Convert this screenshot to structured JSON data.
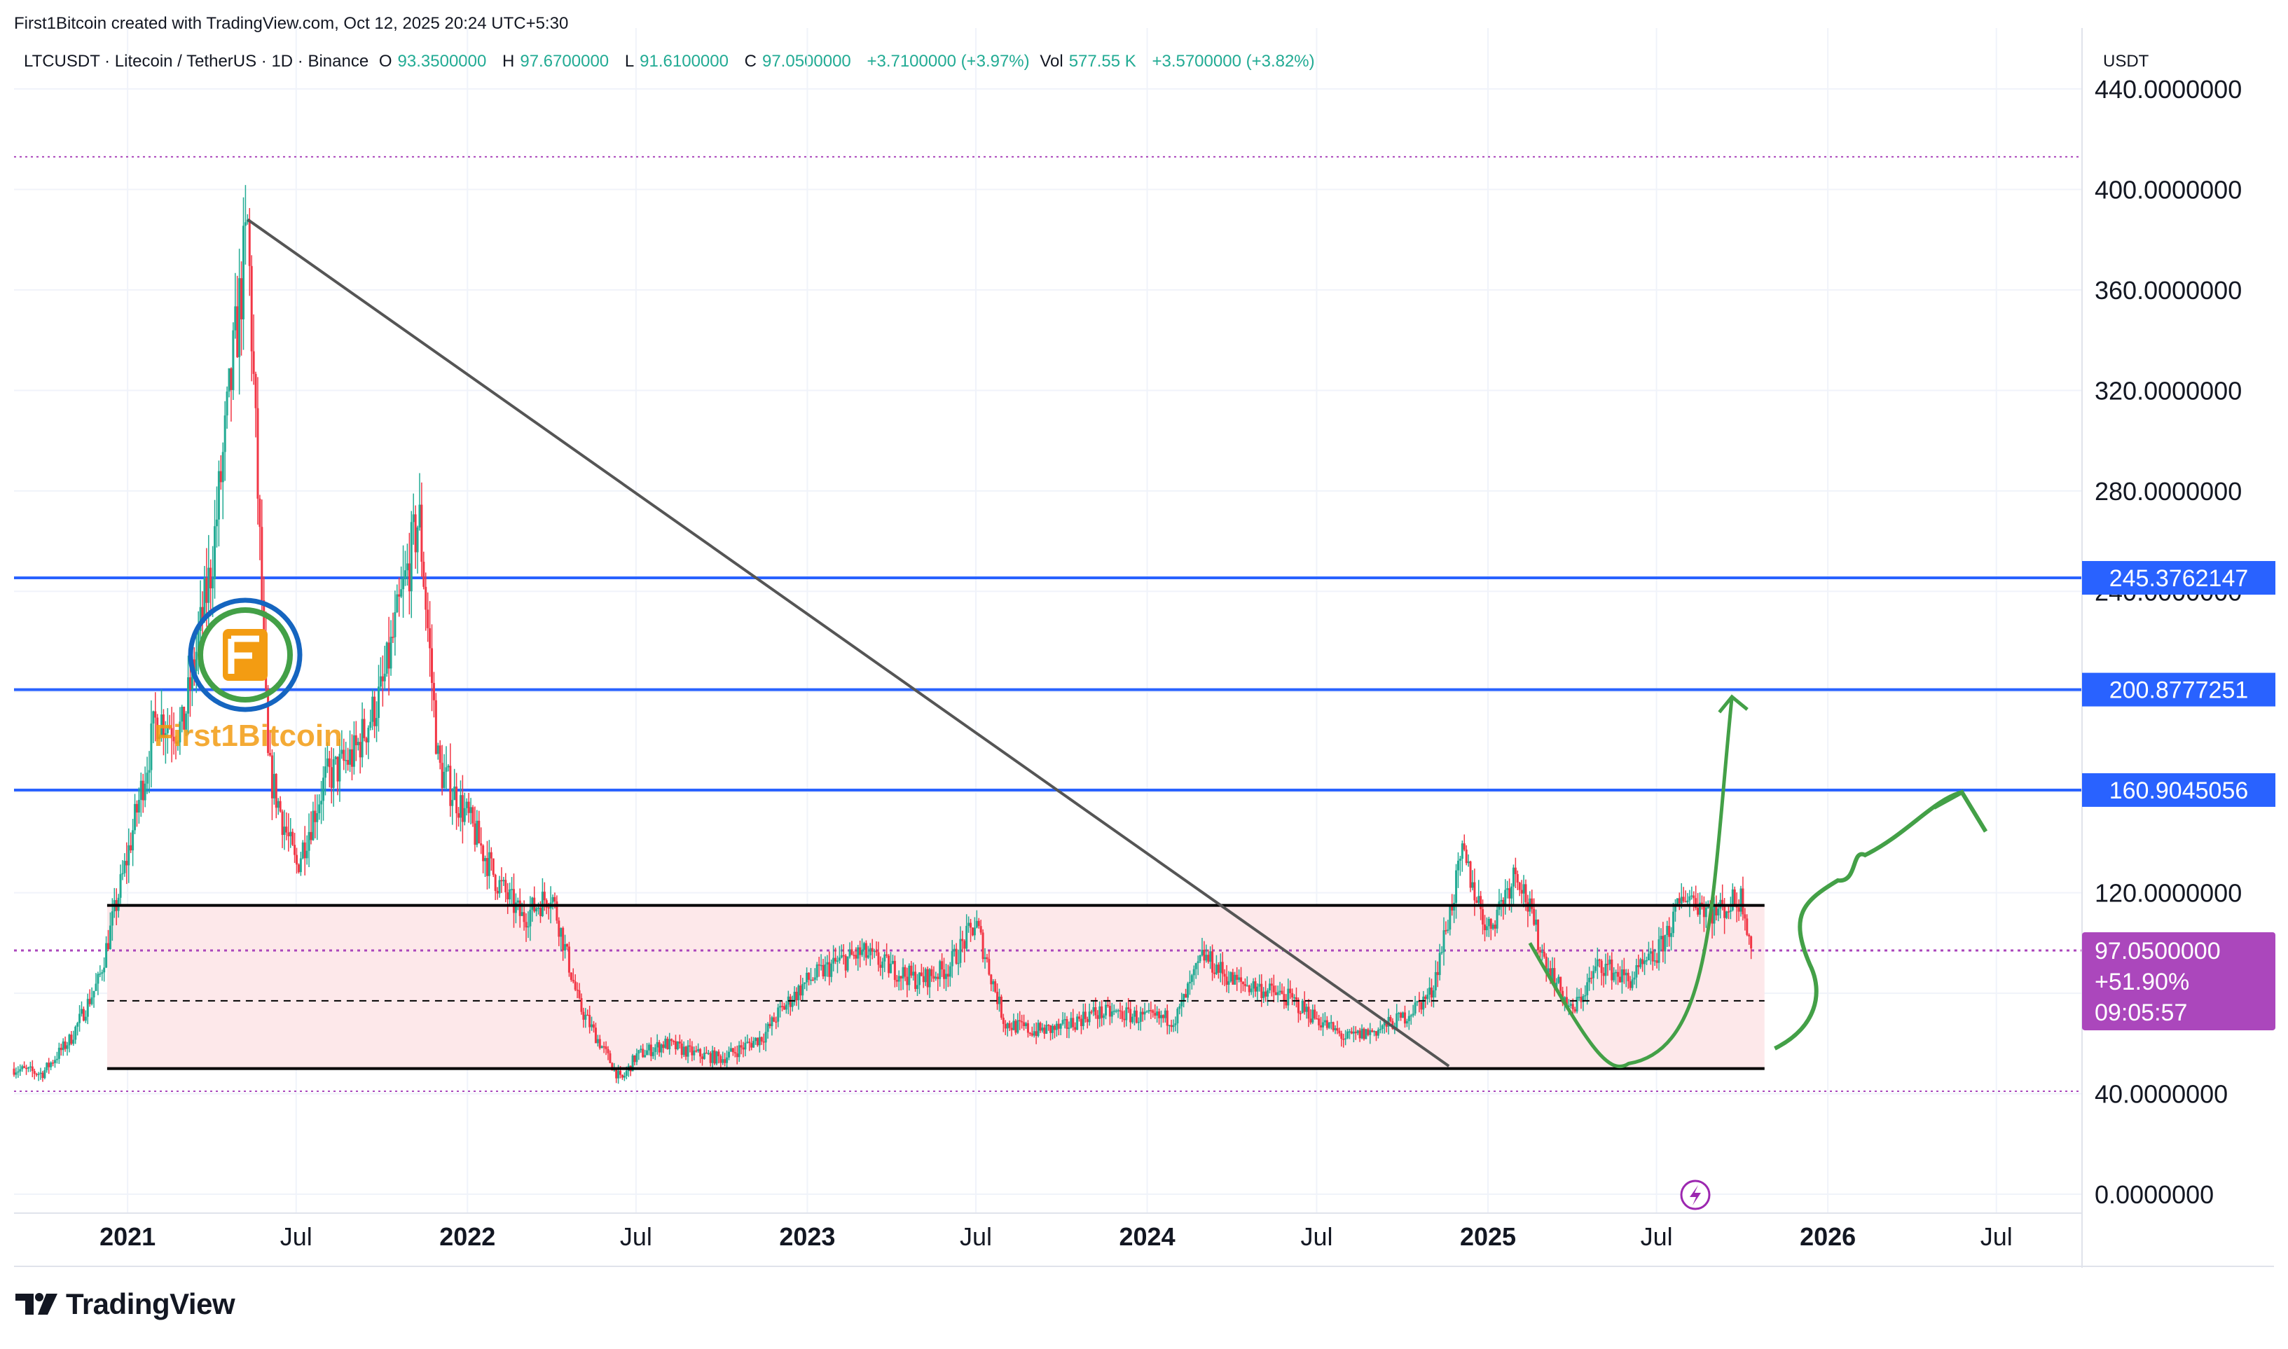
{
  "header": {
    "created": "First1Bitcoin created with TradingView.com, Oct 12, 2025 20:24 UTC+5:30",
    "symbol": "LTCUSDT · Litecoin / TetherUS · 1D · Binance",
    "o_label": "O",
    "o_value": "93.3500000",
    "h_label": "H",
    "h_value": "97.6700000",
    "l_label": "L",
    "l_value": "91.6100000",
    "c_label": "C",
    "c_value": "97.0500000",
    "change": "+3.7100000 (+3.97%)",
    "vol_label": "Vol",
    "vol_value": "577.55 K",
    "vol_change": "+3.5700000 (+3.82%)",
    "unit": "USDT"
  },
  "watermark": {
    "text": "First1Bitcoin"
  },
  "footer": {
    "brand": "TradingView"
  },
  "colors": {
    "up": "#22ab94",
    "down": "#f23645",
    "hline": "#2962ff",
    "box_fill": "#fde8ea",
    "price_tag": "#ab47bc",
    "arrow": "#43a047",
    "trend": "#555555",
    "dotted": "#ab47bc"
  },
  "chart_data": {
    "type": "line",
    "y_ticks": [
      "440.0000000",
      "400.0000000",
      "360.0000000",
      "320.0000000",
      "280.0000000",
      "240.0000000",
      "120.0000000",
      "40.0000000",
      "0.0000000"
    ],
    "ylim": [
      -8,
      445
    ],
    "x_range": [
      "2020-09-01",
      "2026-10-01"
    ],
    "x_ticks": [
      {
        "label": "2021",
        "date": "2021-01-01",
        "bold": true
      },
      {
        "label": "Jul",
        "date": "2021-07-01",
        "bold": false
      },
      {
        "label": "2022",
        "date": "2022-01-01",
        "bold": true
      },
      {
        "label": "Jul",
        "date": "2022-07-01",
        "bold": false
      },
      {
        "label": "2023",
        "date": "2023-01-01",
        "bold": true
      },
      {
        "label": "Jul",
        "date": "2023-07-01",
        "bold": false
      },
      {
        "label": "2024",
        "date": "2024-01-01",
        "bold": true
      },
      {
        "label": "Jul",
        "date": "2024-07-01",
        "bold": false
      },
      {
        "label": "2025",
        "date": "2025-01-01",
        "bold": true
      },
      {
        "label": "Jul",
        "date": "2025-07-01",
        "bold": false
      },
      {
        "label": "2026",
        "date": "2026-01-01",
        "bold": true
      },
      {
        "label": "Jul",
        "date": "2026-07-01",
        "bold": false
      }
    ],
    "price_series": [
      [
        "2020-09-01",
        50
      ],
      [
        "2020-10-01",
        48
      ],
      [
        "2020-11-01",
        62
      ],
      [
        "2020-12-01",
        85
      ],
      [
        "2021-01-01",
        135
      ],
      [
        "2021-02-01",
        190
      ],
      [
        "2021-03-01",
        185
      ],
      [
        "2021-04-01",
        250
      ],
      [
        "2021-05-10",
        385
      ],
      [
        "2021-06-01",
        170
      ],
      [
        "2021-07-01",
        130
      ],
      [
        "2021-08-01",
        165
      ],
      [
        "2021-09-01",
        175
      ],
      [
        "2021-10-01",
        200
      ],
      [
        "2021-11-10",
        270
      ],
      [
        "2021-12-01",
        170
      ],
      [
        "2022-01-01",
        150
      ],
      [
        "2022-02-01",
        125
      ],
      [
        "2022-03-01",
        110
      ],
      [
        "2022-04-01",
        120
      ],
      [
        "2022-05-01",
        75
      ],
      [
        "2022-06-15",
        45
      ],
      [
        "2022-07-01",
        55
      ],
      [
        "2022-08-01",
        60
      ],
      [
        "2022-09-01",
        56
      ],
      [
        "2022-10-01",
        54
      ],
      [
        "2022-11-15",
        63
      ],
      [
        "2022-12-01",
        72
      ],
      [
        "2023-01-01",
        85
      ],
      [
        "2023-02-01",
        92
      ],
      [
        "2023-03-01",
        96
      ],
      [
        "2023-04-01",
        90
      ],
      [
        "2023-05-01",
        85
      ],
      [
        "2023-06-01",
        90
      ],
      [
        "2023-07-01",
        108
      ],
      [
        "2023-08-01",
        68
      ],
      [
        "2023-09-01",
        65
      ],
      [
        "2023-10-01",
        66
      ],
      [
        "2023-11-01",
        72
      ],
      [
        "2023-12-01",
        72
      ],
      [
        "2024-01-01",
        70
      ],
      [
        "2024-02-01",
        70
      ],
      [
        "2024-03-01",
        95
      ],
      [
        "2024-04-01",
        85
      ],
      [
        "2024-05-01",
        82
      ],
      [
        "2024-06-01",
        78
      ],
      [
        "2024-07-01",
        70
      ],
      [
        "2024-08-01",
        62
      ],
      [
        "2024-09-01",
        65
      ],
      [
        "2024-10-01",
        70
      ],
      [
        "2024-11-01",
        80
      ],
      [
        "2024-12-05",
        135
      ],
      [
        "2025-01-01",
        105
      ],
      [
        "2025-02-01",
        130
      ],
      [
        "2025-03-01",
        95
      ],
      [
        "2025-04-01",
        72
      ],
      [
        "2025-05-01",
        92
      ],
      [
        "2025-06-01",
        85
      ],
      [
        "2025-07-01",
        95
      ],
      [
        "2025-08-01",
        120
      ],
      [
        "2025-09-01",
        112
      ],
      [
        "2025-10-01",
        118
      ],
      [
        "2025-10-12",
        97.05
      ]
    ],
    "hlines": [
      {
        "value": 245.3762147,
        "label": "245.3762147"
      },
      {
        "value": 200.8777251,
        "label": "200.8777251"
      },
      {
        "value": 160.9045056,
        "label": "160.9045056"
      }
    ],
    "range_box": {
      "start": "2020-12-10",
      "end": "2025-10-25",
      "top": 115,
      "bottom": 50,
      "mid": 77
    },
    "trendline": [
      [
        "2021-05-10",
        388
      ],
      [
        "2024-11-20",
        51
      ]
    ],
    "top_dotted": 413,
    "bottom_dotted": 41,
    "last_price": {
      "value": 97.05,
      "label": "97.0500000",
      "change": "+51.90%",
      "countdown": "09:05:57"
    }
  }
}
